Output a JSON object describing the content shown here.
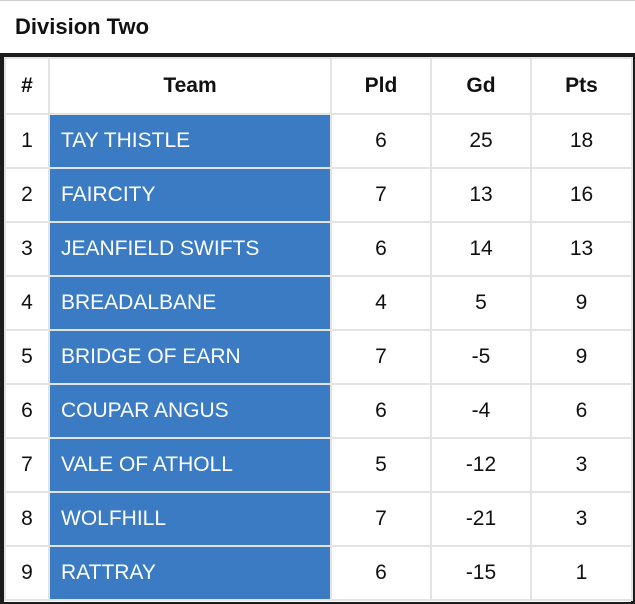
{
  "title": "Division Two",
  "accent_color": "#3a7bc4",
  "columns": [
    "#",
    "Team",
    "Pld",
    "Gd",
    "Pts"
  ],
  "rows": [
    {
      "rank": "1",
      "team": "TAY THISTLE",
      "pld": "6",
      "gd": "25",
      "pts": "18"
    },
    {
      "rank": "2",
      "team": "FAIRCITY",
      "pld": "7",
      "gd": "13",
      "pts": "16"
    },
    {
      "rank": "3",
      "team": "JEANFIELD SWIFTS",
      "pld": "6",
      "gd": "14",
      "pts": "13"
    },
    {
      "rank": "4",
      "team": "BREADALBANE",
      "pld": "4",
      "gd": "5",
      "pts": "9"
    },
    {
      "rank": "5",
      "team": "BRIDGE OF EARN",
      "pld": "7",
      "gd": "-5",
      "pts": "9"
    },
    {
      "rank": "6",
      "team": "COUPAR ANGUS",
      "pld": "6",
      "gd": "-4",
      "pts": "6"
    },
    {
      "rank": "7",
      "team": "VALE OF ATHOLL",
      "pld": "5",
      "gd": "-12",
      "pts": "3"
    },
    {
      "rank": "8",
      "team": "WOLFHILL",
      "pld": "7",
      "gd": "-21",
      "pts": "3"
    },
    {
      "rank": "9",
      "team": "RATTRAY",
      "pld": "6",
      "gd": "-15",
      "pts": "1"
    }
  ]
}
